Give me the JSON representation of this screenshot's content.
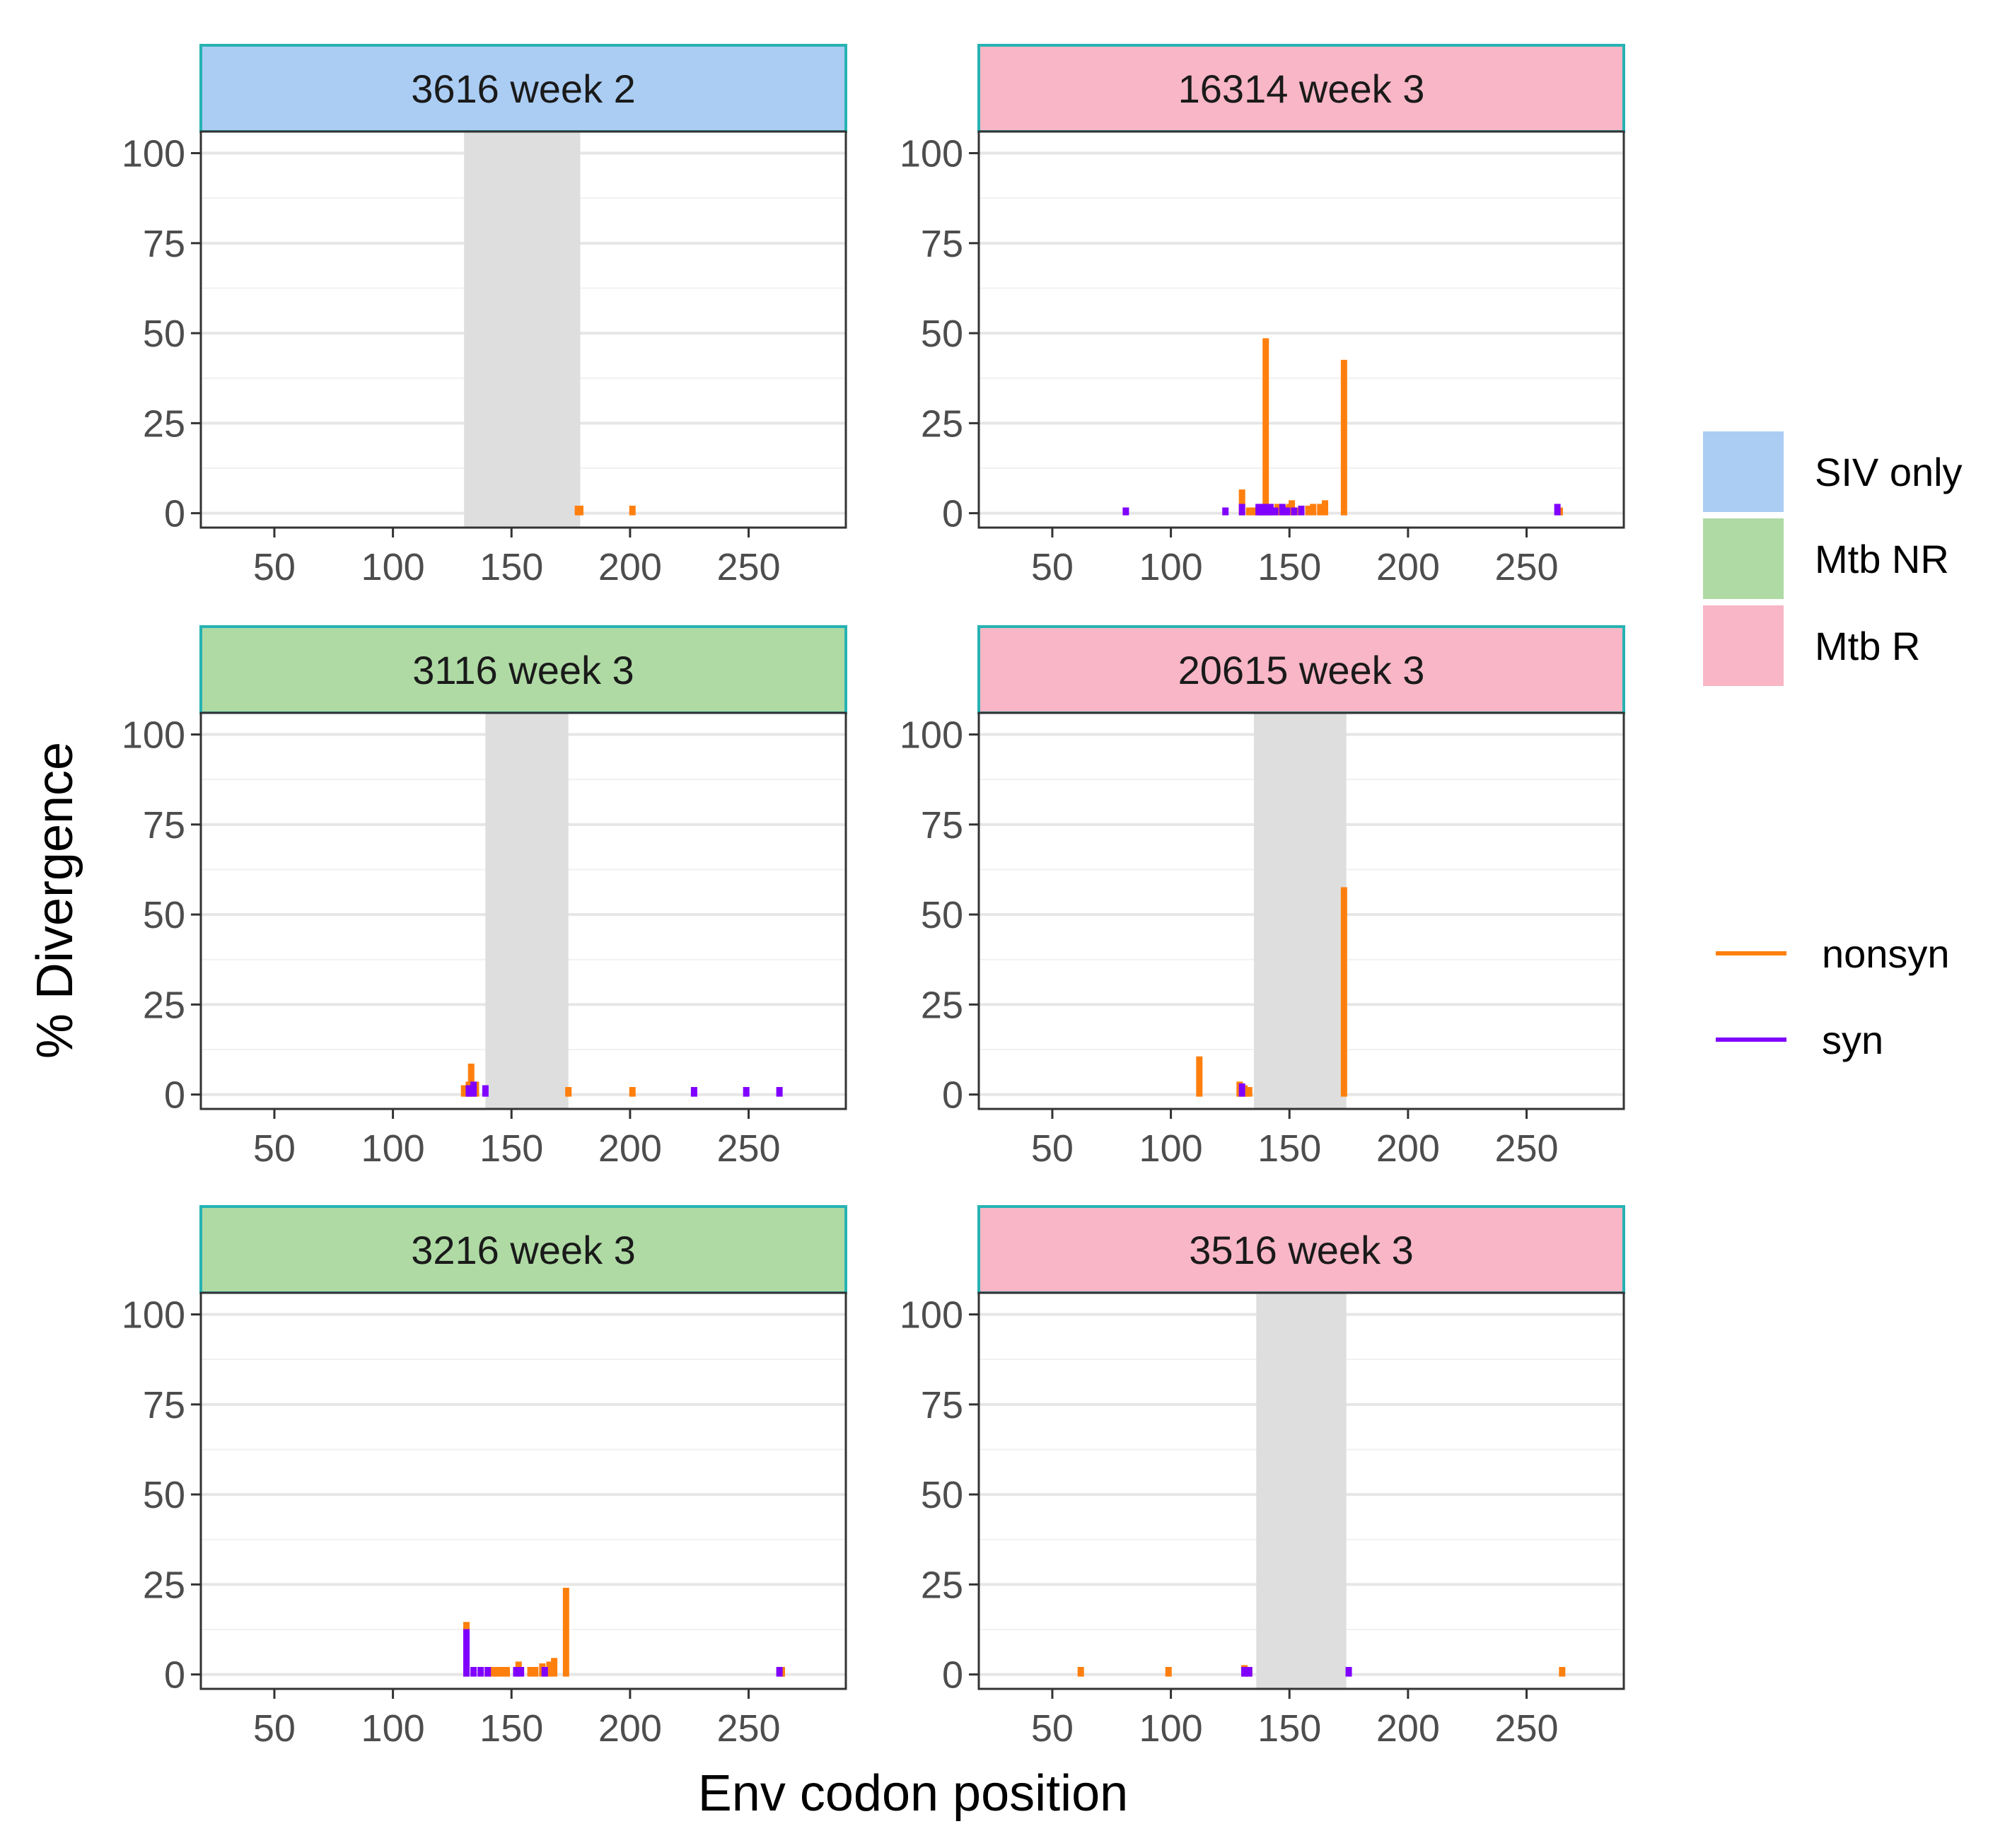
{
  "chart_data": {
    "type": "bar",
    "layout": "facet-grid 3 rows x 2 columns",
    "xlabel": "Env codon position",
    "ylabel": "% Divergence",
    "xlim": [
      19,
      291
    ],
    "ylim": [
      -4,
      106
    ],
    "xticks": [
      50,
      100,
      150,
      200,
      250
    ],
    "yticks": [
      0,
      25,
      50,
      75,
      100
    ],
    "group_legend": [
      {
        "name": "SIV only",
        "color": "#abcdf3"
      },
      {
        "name": "Mtb NR",
        "color": "#afdaa4"
      },
      {
        "name": "Mtb R",
        "color": "#f8b6c6"
      }
    ],
    "series_legend": [
      {
        "name": "nonsyn",
        "color": "#ff7f0e"
      },
      {
        "name": "syn",
        "color": "#8000ff"
      }
    ],
    "panels": [
      {
        "title": "3616 week 2",
        "group": "SIV only",
        "shade": [
          130,
          179
        ],
        "nonsyn": [
          [
            178,
            1.5
          ],
          [
            179,
            1.5
          ],
          [
            201,
            1.5
          ]
        ],
        "syn": []
      },
      {
        "title": "16314 week 3",
        "group": "Mtb R",
        "shade": null,
        "nonsyn": [
          [
            130,
            6
          ],
          [
            133,
            1
          ],
          [
            135,
            1
          ],
          [
            138,
            1
          ],
          [
            140,
            48
          ],
          [
            141,
            1
          ],
          [
            143,
            1
          ],
          [
            145,
            2
          ],
          [
            146,
            2
          ],
          [
            148,
            1.5
          ],
          [
            150,
            2
          ],
          [
            151,
            3
          ],
          [
            153,
            1
          ],
          [
            158,
            1.5
          ],
          [
            160,
            2
          ],
          [
            163,
            2
          ],
          [
            165,
            3
          ],
          [
            173,
            42
          ],
          [
            264,
            1
          ]
        ],
        "syn": [
          [
            81,
            1
          ],
          [
            123,
            1
          ],
          [
            130,
            2
          ],
          [
            137,
            2
          ],
          [
            138,
            2
          ],
          [
            139,
            2
          ],
          [
            141,
            2
          ],
          [
            142,
            2
          ],
          [
            144,
            1
          ],
          [
            147,
            2
          ],
          [
            149,
            1
          ],
          [
            152,
            1
          ],
          [
            155,
            1.5
          ],
          [
            263,
            2
          ]
        ]
      },
      {
        "title": "3116 week 3",
        "group": "Mtb NR",
        "shade": [
          139,
          174
        ],
        "nonsyn": [
          [
            130,
            2
          ],
          [
            132,
            3
          ],
          [
            133,
            8
          ],
          [
            135,
            3
          ],
          [
            174,
            1.5
          ],
          [
            201,
            1.5
          ]
        ],
        "syn": [
          [
            132,
            2
          ],
          [
            134,
            3
          ],
          [
            139,
            2
          ],
          [
            227,
            1.5
          ],
          [
            249,
            1.5
          ],
          [
            263,
            1.5
          ]
        ]
      },
      {
        "title": "20615 week 3",
        "group": "Mtb R",
        "shade": [
          135,
          174
        ],
        "nonsyn": [
          [
            112,
            10
          ],
          [
            129,
            3
          ],
          [
            131,
            2
          ],
          [
            133,
            1.5
          ],
          [
            173,
            57
          ]
        ],
        "syn": [
          [
            130,
            2.5
          ]
        ]
      },
      {
        "title": "3216 week 3",
        "group": "Mtb NR",
        "shade": null,
        "nonsyn": [
          [
            131,
            14
          ],
          [
            140,
            1.5
          ],
          [
            142,
            1.5
          ],
          [
            144,
            1.5
          ],
          [
            146,
            1.5
          ],
          [
            148,
            1.5
          ],
          [
            153,
            3
          ],
          [
            158,
            1.5
          ],
          [
            160,
            1.5
          ],
          [
            163,
            2.5
          ],
          [
            166,
            3
          ],
          [
            168,
            4
          ],
          [
            173,
            23.5
          ],
          [
            264,
            1.5
          ]
        ],
        "syn": [
          [
            131,
            12
          ],
          [
            134,
            1.5
          ],
          [
            137,
            1.5
          ],
          [
            140,
            1.5
          ],
          [
            152,
            1.5
          ],
          [
            154,
            1.5
          ],
          [
            164,
            1.5
          ],
          [
            263,
            1.5
          ]
        ]
      },
      {
        "title": "3516 week 3",
        "group": "Mtb R",
        "shade": [
          136,
          174
        ],
        "nonsyn": [
          [
            62,
            1.5
          ],
          [
            99,
            1.5
          ],
          [
            131,
            2
          ],
          [
            133,
            1.5
          ],
          [
            265,
            1.5
          ]
        ],
        "syn": [
          [
            131,
            1.5
          ],
          [
            133,
            1.5
          ],
          [
            175,
            1.5
          ]
        ]
      }
    ]
  }
}
